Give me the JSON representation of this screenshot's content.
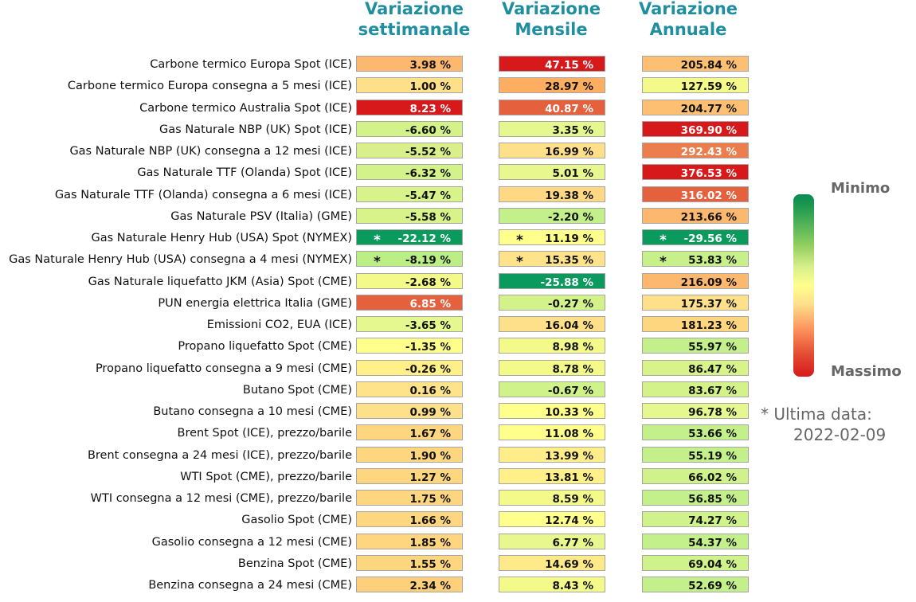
{
  "chart_data": {
    "type": "table",
    "columns": [
      {
        "title": "Variazione settimanale",
        "title_lines": [
          "Variazione",
          "settimanale"
        ]
      },
      {
        "title": "Variazione Mensile",
        "title_lines": [
          "Variazione",
          "Mensile"
        ]
      },
      {
        "title": "Variazione Annuale",
        "title_lines": [
          "Variazione",
          "Annuale"
        ]
      }
    ],
    "rows": [
      {
        "label": "Carbone termico Europa Spot (ICE)",
        "values": [
          3.98,
          47.15,
          205.84
        ],
        "stars": [
          false,
          false,
          false
        ],
        "colors": [
          "#fdb870",
          "#d7191c",
          "#fdbf71"
        ]
      },
      {
        "label": "Carbone termico Europa consegna a 5 mesi (ICE)",
        "values": [
          1.0,
          28.97,
          127.59
        ],
        "stars": [
          false,
          false,
          false
        ],
        "colors": [
          "#fee08b",
          "#fdae61",
          "#f4fa8a"
        ]
      },
      {
        "label": "Carbone termico Australia Spot (ICE)",
        "values": [
          8.23,
          40.87,
          204.77
        ],
        "stars": [
          false,
          false,
          false
        ],
        "colors": [
          "#d7191c",
          "#e5603c",
          "#fdbf71"
        ]
      },
      {
        "label": "Gas Naturale NBP (UK) Spot (ICE)",
        "values": [
          -6.6,
          3.35,
          369.9
        ],
        "stars": [
          false,
          false,
          false
        ],
        "colors": [
          "#d3f28a",
          "#e5f78f",
          "#d7191c"
        ]
      },
      {
        "label": "Gas Naturale NBP (UK) consegna a 12 mesi (ICE)",
        "values": [
          -5.52,
          16.99,
          292.43
        ],
        "stars": [
          false,
          false,
          false
        ],
        "colors": [
          "#d9ef8b",
          "#fee08b",
          "#ec7d4d"
        ]
      },
      {
        "label": "Gas Naturale TTF (Olanda) Spot (ICE)",
        "values": [
          -6.32,
          5.01,
          376.53
        ],
        "stars": [
          false,
          false,
          false
        ],
        "colors": [
          "#d3f28a",
          "#e8f88f",
          "#d7191c"
        ]
      },
      {
        "label": "Gas Naturale TTF (Olanda) consegna a 6 mesi (ICE)",
        "values": [
          -5.47,
          19.38,
          316.02
        ],
        "stars": [
          false,
          false,
          false
        ],
        "colors": [
          "#d9f38b",
          "#fed882",
          "#e5603c"
        ]
      },
      {
        "label": "Gas Naturale PSV (Italia) (GME)",
        "values": [
          -5.58,
          -2.2,
          213.66
        ],
        "stars": [
          false,
          false,
          false
        ],
        "colors": [
          "#d9f38b",
          "#c3f08a",
          "#fdb870"
        ]
      },
      {
        "label": "Gas Naturale Henry Hub (USA) Spot (NYMEX)",
        "values": [
          -22.12,
          11.19,
          -29.56
        ],
        "stars": [
          true,
          true,
          true
        ],
        "colors": [
          "#0a9a5e",
          "#ffff8c",
          "#0a9a5e"
        ]
      },
      {
        "label": "Gas Naturale Henry Hub (USA) consegna a 4 mesi (NYMEX)",
        "values": [
          -8.19,
          15.35,
          53.83
        ],
        "stars": [
          true,
          true,
          true
        ],
        "colors": [
          "#bcee86",
          "#fee38b",
          "#c8f08a"
        ]
      },
      {
        "label": "Gas Naturale liquefatto JKM (Asia) Spot (CME)",
        "values": [
          -2.68,
          -25.88,
          216.09
        ],
        "stars": [
          false,
          false,
          false
        ],
        "colors": [
          "#f4fa8a",
          "#0a9a5e",
          "#fdb870"
        ]
      },
      {
        "label": "PUN energia elettrica Italia (GME)",
        "values": [
          6.85,
          -0.27,
          175.37
        ],
        "stars": [
          false,
          false,
          false
        ],
        "colors": [
          "#e5603c",
          "#d3f28a",
          "#fee08b"
        ]
      },
      {
        "label": "Emissioni CO2, EUA (ICE)",
        "values": [
          -3.65,
          16.04,
          181.23
        ],
        "stars": [
          false,
          false,
          false
        ],
        "colors": [
          "#e5f78f",
          "#fee08b",
          "#fed67f"
        ]
      },
      {
        "label": "Propano liquefatto Spot (CME)",
        "values": [
          -1.35,
          8.98,
          55.97
        ],
        "stars": [
          false,
          false,
          false
        ],
        "colors": [
          "#ffff8c",
          "#f4fa8a",
          "#c3f08a"
        ]
      },
      {
        "label": "Propano liquefatto consegna a 9 mesi (CME)",
        "values": [
          -0.26,
          8.78,
          86.47
        ],
        "stars": [
          false,
          false,
          false
        ],
        "colors": [
          "#fff08a",
          "#f4fa8a",
          "#d9f38b"
        ]
      },
      {
        "label": "Butano Spot (CME)",
        "values": [
          0.16,
          -0.67,
          83.67
        ],
        "stars": [
          false,
          false,
          false
        ],
        "colors": [
          "#fee38b",
          "#cff28a",
          "#d3f28a"
        ]
      },
      {
        "label": "Butano consegna a 10 mesi (CME)",
        "values": [
          0.99,
          10.33,
          96.78
        ],
        "stars": [
          false,
          false,
          false
        ],
        "colors": [
          "#fee08b",
          "#ffff8c",
          "#e5f78f"
        ]
      },
      {
        "label": "Brent Spot (ICE), prezzo/barile",
        "values": [
          1.67,
          11.08,
          53.66
        ],
        "stars": [
          false,
          false,
          false
        ],
        "colors": [
          "#fed67f",
          "#ffff8c",
          "#c3f08a"
        ]
      },
      {
        "label": "Brent consegna a 24 mesi (ICE), prezzo/barile",
        "values": [
          1.9,
          13.99,
          55.19
        ],
        "stars": [
          false,
          false,
          false
        ],
        "colors": [
          "#fed67f",
          "#ffed89",
          "#c3f08a"
        ]
      },
      {
        "label": "WTI Spot (CME), prezzo/barile",
        "values": [
          1.27,
          13.81,
          66.02
        ],
        "stars": [
          false,
          false,
          false
        ],
        "colors": [
          "#fed67f",
          "#fff08a",
          "#cff28a"
        ]
      },
      {
        "label": "WTI consegna a 12 mesi (CME), prezzo/barile",
        "values": [
          1.75,
          8.59,
          56.85
        ],
        "stars": [
          false,
          false,
          false
        ],
        "colors": [
          "#fed67f",
          "#f4fa8a",
          "#c3f08a"
        ]
      },
      {
        "label": "Gasolio Spot (CME)",
        "values": [
          1.66,
          12.74,
          74.27
        ],
        "stars": [
          false,
          false,
          false
        ],
        "colors": [
          "#fed67f",
          "#ffff8c",
          "#cff28a"
        ]
      },
      {
        "label": "Gasolio consegna a 12 mesi (CME)",
        "values": [
          1.85,
          6.77,
          54.37
        ],
        "stars": [
          false,
          false,
          false
        ],
        "colors": [
          "#fed67f",
          "#e8f88f",
          "#c3f08a"
        ]
      },
      {
        "label": "Benzina Spot (CME)",
        "values": [
          1.55,
          14.69,
          69.04
        ],
        "stars": [
          false,
          false,
          false
        ],
        "colors": [
          "#fed67f",
          "#feea89",
          "#cff28a"
        ]
      },
      {
        "label": "Benzina consegna a 24 mesi (CME)",
        "values": [
          2.34,
          8.43,
          52.69
        ],
        "stars": [
          false,
          false,
          false
        ],
        "colors": [
          "#fed07c",
          "#f4fa8a",
          "#c3f08a"
        ]
      }
    ],
    "colorscale": {
      "low_color": "#1a9850",
      "mid_color": "#ffff8c",
      "high_color": "#d7191c"
    },
    "value_suffix": " %",
    "star_symbol": "*"
  },
  "legend": {
    "top_label": "Minimo",
    "bottom_label": "Massimo"
  },
  "note": {
    "line1": "* Ultima data:",
    "line2": "2022-02-09"
  }
}
